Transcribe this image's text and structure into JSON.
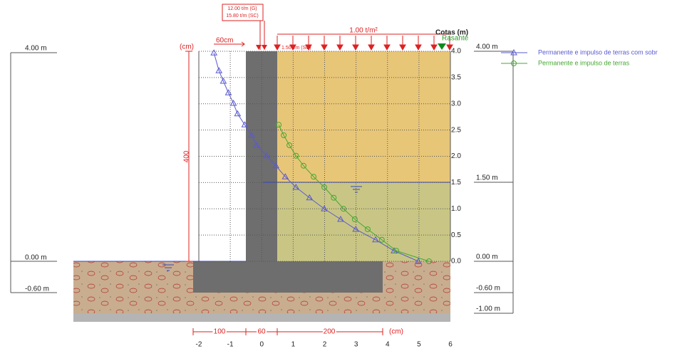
{
  "chart_data": {
    "type": "line",
    "xlim": [
      -2,
      6
    ],
    "ylim": [
      0,
      4
    ],
    "xticks": [
      -2,
      -1,
      0,
      1,
      2,
      3,
      4,
      5,
      6
    ],
    "yticks": [
      {
        "value": 0,
        "label": "0.0"
      },
      {
        "value": 0.5,
        "label": "0.5"
      },
      {
        "value": 1,
        "label": "1.0"
      },
      {
        "value": 1.5,
        "label": "1.5"
      },
      {
        "value": 2,
        "label": "2.0"
      },
      {
        "value": 2.5,
        "label": "2.5"
      },
      {
        "value": 3,
        "label": "3.0"
      },
      {
        "value": 3.5,
        "label": "3.5"
      },
      {
        "value": 4,
        "label": "4.0"
      }
    ],
    "grid": true,
    "series": [
      {
        "name": "Permanente e impulso de terras com sobr",
        "color": "#5a5ad0",
        "marker": "triangle",
        "x": [
          -1.52,
          -1.36,
          -1.22,
          -1.06,
          -0.9,
          -0.77,
          -0.54,
          -0.32,
          -0.16,
          0.16,
          0.45,
          0.75,
          1.09,
          1.52,
          1.99,
          2.51,
          2.99,
          3.62,
          4.21,
          4.98
        ],
        "values": [
          3.97,
          3.63,
          3.43,
          3.21,
          3.01,
          2.81,
          2.6,
          2.4,
          2.21,
          2.01,
          1.82,
          1.61,
          1.41,
          1.21,
          1.0,
          0.8,
          0.61,
          0.41,
          0.2,
          0.0
        ]
      },
      {
        "name": "Permanente e impulso de terras",
        "color": "#44a833",
        "marker": "circle",
        "x": [
          0.54,
          0.7,
          0.88,
          1.09,
          1.33,
          1.65,
          1.99,
          2.29,
          2.6,
          2.96,
          3.37,
          3.82,
          4.28,
          5.32
        ],
        "values": [
          2.6,
          2.4,
          2.21,
          2.01,
          1.82,
          1.61,
          1.41,
          1.21,
          1.0,
          0.8,
          0.61,
          0.41,
          0.2,
          0.0
        ]
      }
    ]
  },
  "drawing": {
    "loads": {
      "wall_top_g": "12.00 t/m (G)",
      "wall_top_sc": "15.80 t/m (SC)",
      "surcharge": "1.00 t/m²",
      "line_sc": "1.50 t/m (SC)",
      "offset": "60cm"
    },
    "cotas": "Cotas (m)",
    "rasante": "Rasante",
    "unit_left": "(cm)",
    "height_dim": "400",
    "bottom_dims": [
      "100",
      "60",
      "200",
      "(cm)"
    ],
    "levels_left": [
      "4.00 m",
      "0.00 m",
      "-0.60 m"
    ],
    "levels_right": [
      "4.00 m",
      "1.50 m",
      "0.00 m",
      "-0.60 m",
      "-1.00 m"
    ]
  }
}
